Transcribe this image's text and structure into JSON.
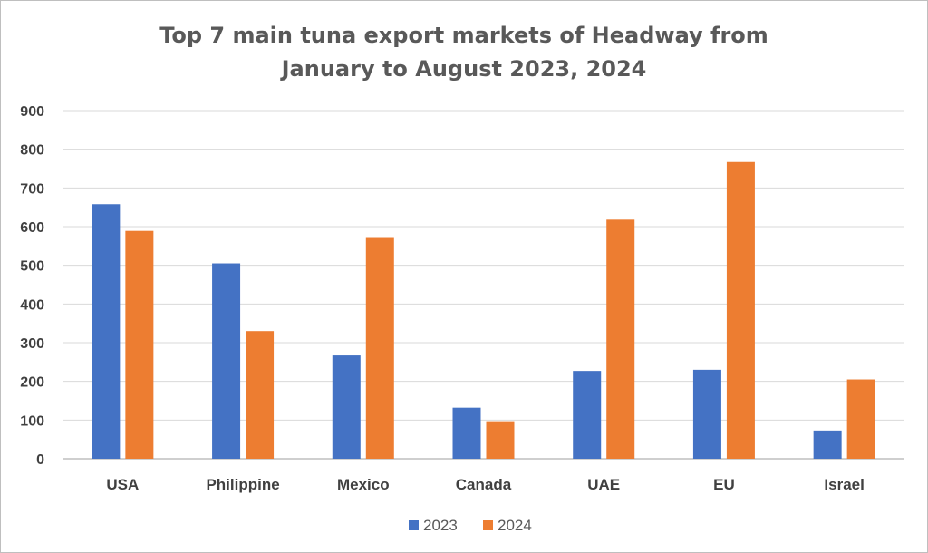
{
  "chart_data": {
    "type": "bar",
    "title_lines": [
      "Top 7 main tuna export markets of Headway from",
      "January to August 2023, 2024"
    ],
    "categories": [
      "USA",
      "Philippine",
      "Mexico",
      "Canada",
      "UAE",
      "EU",
      "Israel"
    ],
    "series": [
      {
        "name": "2023",
        "color": "#4472c4",
        "values": [
          658,
          505,
          267,
          132,
          227,
          230,
          73
        ]
      },
      {
        "name": "2024",
        "color": "#ed7d31",
        "values": [
          589,
          330,
          573,
          97,
          618,
          767,
          205
        ]
      }
    ],
    "ylim": [
      0,
      900
    ],
    "yticks": [
      0,
      100,
      200,
      300,
      400,
      500,
      600,
      700,
      800,
      900
    ],
    "grid": true,
    "legend_position": "bottom"
  }
}
